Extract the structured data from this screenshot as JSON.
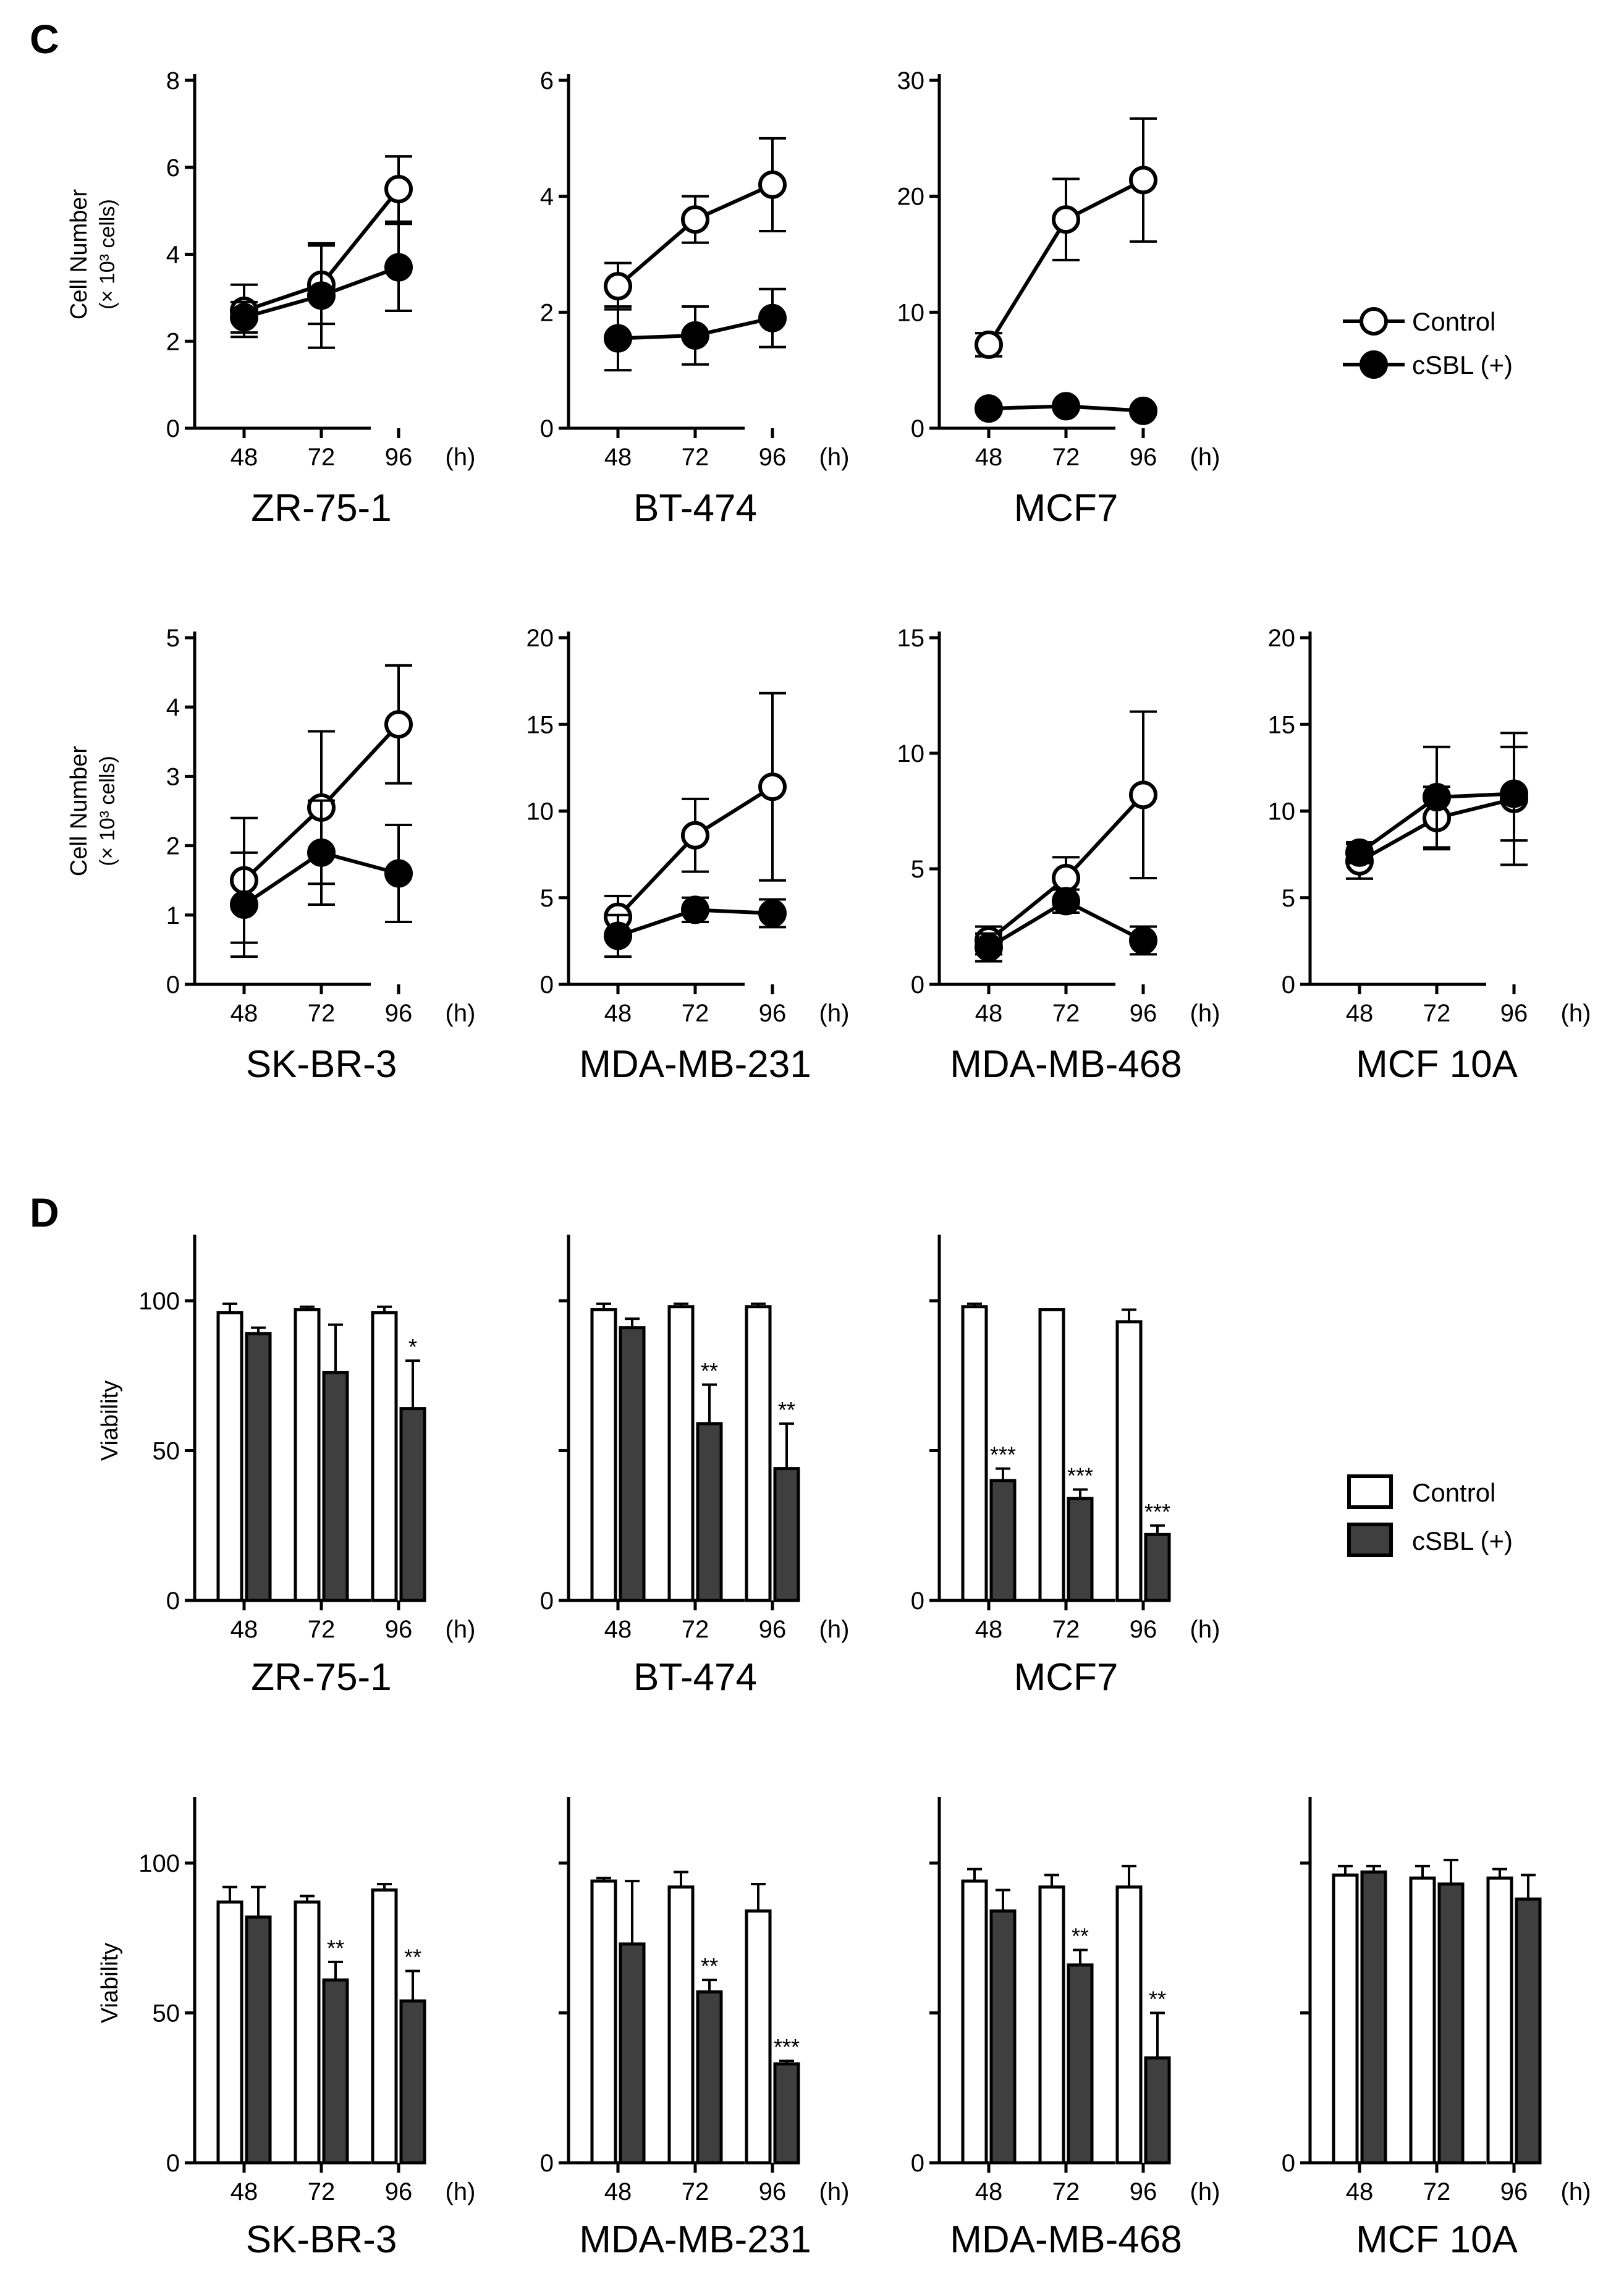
{
  "panels": [
    {
      "letter": "C",
      "type": "line",
      "ylabel": "Cell Number",
      "ylabel_sub": "(× 10³ cells)",
      "legend": {
        "control": "Control",
        "treated": "cSBL (+)"
      }
    },
    {
      "letter": "D",
      "type": "bar",
      "ylabel": "Viability",
      "legend": {
        "control": "Control",
        "treated": "cSBL (+)"
      }
    }
  ],
  "x_unit": "(h)",
  "chart_data": [
    {
      "panel": "C",
      "type": "line",
      "title": "ZR-75-1",
      "categories": [
        "48",
        "72",
        "96"
      ],
      "yticks": [
        0,
        2,
        4,
        6,
        8
      ],
      "ylim": [
        0,
        8
      ],
      "ylabel": "Cell Number (× 10³ cells)",
      "series": [
        {
          "name": "Control",
          "values": [
            2.7,
            3.3,
            5.5
          ],
          "errors": [
            0.6,
            0.9,
            0.75
          ]
        },
        {
          "name": "cSBL (+)",
          "values": [
            2.55,
            3.05,
            3.7
          ],
          "errors": [
            0.35,
            1.2,
            1.0
          ]
        }
      ]
    },
    {
      "panel": "C",
      "type": "line",
      "title": "BT-474",
      "categories": [
        "48",
        "72",
        "96"
      ],
      "yticks": [
        0,
        2,
        4,
        6
      ],
      "ylim": [
        0,
        6
      ],
      "series": [
        {
          "name": "Control",
          "values": [
            2.45,
            3.6,
            4.2
          ],
          "errors": [
            0.4,
            0.4,
            0.8
          ]
        },
        {
          "name": "cSBL (+)",
          "values": [
            1.55,
            1.6,
            1.9
          ],
          "errors": [
            0.55,
            0.5,
            0.5
          ]
        }
      ]
    },
    {
      "panel": "C",
      "type": "line",
      "title": "MCF7",
      "categories": [
        "48",
        "72",
        "96"
      ],
      "yticks": [
        0,
        10,
        20,
        30
      ],
      "ylim": [
        0,
        30
      ],
      "series": [
        {
          "name": "Control",
          "values": [
            7.2,
            18.0,
            21.4
          ],
          "errors": [
            1.0,
            3.5,
            5.3
          ]
        },
        {
          "name": "cSBL (+)",
          "values": [
            1.7,
            1.9,
            1.5
          ],
          "errors": [
            0.3,
            0.3,
            0.3
          ]
        }
      ]
    },
    {
      "panel": "C",
      "type": "line",
      "title": "SK-BR-3",
      "categories": [
        "48",
        "72",
        "96"
      ],
      "yticks": [
        0,
        1,
        2,
        3,
        4,
        5
      ],
      "ylim": [
        0,
        5
      ],
      "ylabel": "Cell Number (× 10³ cells)",
      "series": [
        {
          "name": "Control",
          "values": [
            1.5,
            2.55,
            3.75
          ],
          "errors": [
            0.9,
            1.1,
            0.85
          ]
        },
        {
          "name": "cSBL (+)",
          "values": [
            1.15,
            1.9,
            1.6
          ],
          "errors": [
            0.75,
            0.75,
            0.7
          ]
        }
      ]
    },
    {
      "panel": "C",
      "type": "line",
      "title": "MDA-MB-231",
      "categories": [
        "48",
        "72",
        "96"
      ],
      "yticks": [
        0,
        5,
        10,
        15,
        20
      ],
      "ylim": [
        0,
        20
      ],
      "series": [
        {
          "name": "Control",
          "values": [
            3.9,
            8.6,
            11.4
          ],
          "errors": [
            1.2,
            2.1,
            5.4
          ]
        },
        {
          "name": "cSBL (+)",
          "values": [
            2.8,
            4.3,
            4.1
          ],
          "errors": [
            1.2,
            0.7,
            0.8
          ]
        }
      ]
    },
    {
      "panel": "C",
      "type": "line",
      "title": "MDA-MB-468",
      "categories": [
        "48",
        "72",
        "96"
      ],
      "yticks": [
        0,
        5,
        10,
        15
      ],
      "ylim": [
        0,
        15
      ],
      "series": [
        {
          "name": "Control",
          "values": [
            1.9,
            4.6,
            8.2
          ],
          "errors": [
            0.6,
            0.9,
            3.6
          ]
        },
        {
          "name": "cSBL (+)",
          "values": [
            1.6,
            3.6,
            1.9
          ],
          "errors": [
            0.6,
            0.5,
            0.6
          ]
        }
      ]
    },
    {
      "panel": "C",
      "type": "line",
      "title": "MCF 10A",
      "categories": [
        "48",
        "72",
        "96"
      ],
      "yticks": [
        0,
        5,
        10,
        15,
        20
      ],
      "ylim": [
        0,
        20
      ],
      "series": [
        {
          "name": "Control",
          "values": [
            7.1,
            9.6,
            10.7
          ],
          "errors": [
            1.0,
            1.8,
            3.8
          ]
        },
        {
          "name": "cSBL (+)",
          "values": [
            7.6,
            10.8,
            11.0
          ],
          "errors": [
            0.6,
            2.9,
            2.7
          ]
        }
      ]
    },
    {
      "panel": "D",
      "type": "bar",
      "title": "ZR-75-1",
      "categories": [
        "48",
        "72",
        "96"
      ],
      "yticks": [
        0,
        50,
        100
      ],
      "ylim": [
        0,
        120
      ],
      "ylabel": "Viability",
      "series": [
        {
          "name": "Control",
          "values": [
            96,
            97,
            96
          ],
          "errors": [
            3,
            1,
            2
          ]
        },
        {
          "name": "cSBL (+)",
          "values": [
            89,
            76,
            64
          ],
          "errors": [
            2,
            16,
            16
          ]
        }
      ],
      "annotations": [
        "",
        "",
        "*"
      ]
    },
    {
      "panel": "D",
      "type": "bar",
      "title": "BT-474",
      "categories": [
        "48",
        "72",
        "96"
      ],
      "yticks": [
        0,
        50,
        100
      ],
      "ylim": [
        0,
        120
      ],
      "ytick_labels": [
        "0",
        "",
        ""
      ],
      "series": [
        {
          "name": "Control",
          "values": [
            97,
            98,
            98
          ],
          "errors": [
            2,
            1,
            1
          ]
        },
        {
          "name": "cSBL (+)",
          "values": [
            91,
            59,
            44
          ],
          "errors": [
            3,
            13,
            15
          ]
        }
      ],
      "annotations": [
        "",
        "**",
        "**"
      ]
    },
    {
      "panel": "D",
      "type": "bar",
      "title": "MCF7",
      "categories": [
        "48",
        "72",
        "96"
      ],
      "yticks": [
        0,
        50,
        100
      ],
      "ylim": [
        0,
        120
      ],
      "ytick_labels": [
        "0",
        "",
        ""
      ],
      "series": [
        {
          "name": "Control",
          "values": [
            98,
            97,
            93
          ],
          "errors": [
            1,
            0,
            4
          ]
        },
        {
          "name": "cSBL (+)",
          "values": [
            40,
            34,
            22
          ],
          "errors": [
            4,
            3,
            3
          ]
        }
      ],
      "annotations": [
        "***",
        "***",
        "***"
      ]
    },
    {
      "panel": "D",
      "type": "bar",
      "title": "SK-BR-3",
      "categories": [
        "48",
        "72",
        "96"
      ],
      "yticks": [
        0,
        50,
        100
      ],
      "ylim": [
        0,
        120
      ],
      "ylabel": "Viability",
      "series": [
        {
          "name": "Control",
          "values": [
            87,
            87,
            91
          ],
          "errors": [
            5,
            2,
            2
          ]
        },
        {
          "name": "cSBL (+)",
          "values": [
            82,
            61,
            54
          ],
          "errors": [
            10,
            6,
            10
          ]
        }
      ],
      "annotations": [
        "",
        "**",
        "**"
      ]
    },
    {
      "panel": "D",
      "type": "bar",
      "title": "MDA-MB-231",
      "categories": [
        "48",
        "72",
        "96"
      ],
      "yticks": [
        0,
        50,
        100
      ],
      "ylim": [
        0,
        120
      ],
      "ytick_labels": [
        "0",
        "",
        ""
      ],
      "series": [
        {
          "name": "Control",
          "values": [
            94,
            92,
            84
          ],
          "errors": [
            1,
            5,
            9
          ]
        },
        {
          "name": "cSBL (+)",
          "values": [
            73,
            57,
            33
          ],
          "errors": [
            21,
            4,
            1
          ]
        }
      ],
      "annotations": [
        "",
        "**",
        "***"
      ]
    },
    {
      "panel": "D",
      "type": "bar",
      "title": "MDA-MB-468",
      "categories": [
        "48",
        "72",
        "96"
      ],
      "yticks": [
        0,
        50,
        100
      ],
      "ylim": [
        0,
        120
      ],
      "ytick_labels": [
        "0",
        "",
        ""
      ],
      "series": [
        {
          "name": "Control",
          "values": [
            94,
            92,
            92
          ],
          "errors": [
            4,
            4,
            7
          ]
        },
        {
          "name": "cSBL (+)",
          "values": [
            84,
            66,
            35
          ],
          "errors": [
            7,
            5,
            15
          ]
        }
      ],
      "annotations": [
        "",
        "**",
        "**"
      ]
    },
    {
      "panel": "D",
      "type": "bar",
      "title": "MCF 10A",
      "categories": [
        "48",
        "72",
        "96"
      ],
      "yticks": [
        0,
        50,
        100
      ],
      "ylim": [
        0,
        120
      ],
      "ytick_labels": [
        "0",
        "",
        ""
      ],
      "series": [
        {
          "name": "Control",
          "values": [
            96,
            95,
            95
          ],
          "errors": [
            3,
            4,
            3
          ]
        },
        {
          "name": "cSBL (+)",
          "values": [
            97,
            93,
            88
          ],
          "errors": [
            2,
            8,
            8
          ]
        }
      ],
      "annotations": [
        "",
        "",
        ""
      ]
    }
  ],
  "colors": {
    "control_fill": "#ffffff",
    "treated_fill": "#3f3f3f",
    "line": "#000000",
    "marker_filled": "#000000"
  }
}
